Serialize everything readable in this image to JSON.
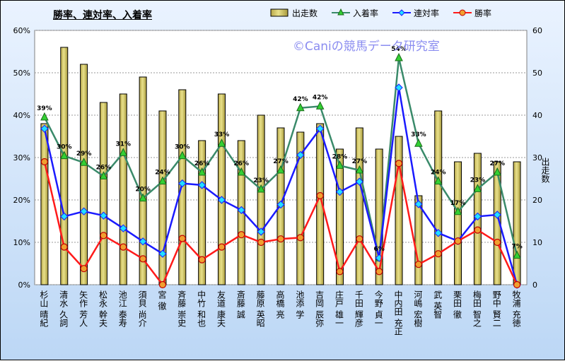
{
  "chart_data": {
    "type": "bar+line",
    "title": "勝率、連対率、入着率",
    "watermark": "©Caniの競馬データ研究室",
    "categories": [
      "杉山 晴紀",
      "清水 久詞",
      "矢作 芳人",
      "松永 幹夫",
      "池江 泰寿",
      "須貝 尚介",
      "宮 徹",
      "斉藤 崇史",
      "中竹 和也",
      "友道 康夫",
      "斎藤 誠",
      "藤原 英昭",
      "高橋 亮",
      "池添 学",
      "吉岡 辰弥",
      "庄戸 雄一",
      "千田 輝彦",
      "今野 貞一",
      "中内田 充正",
      "河嶋 宏樹",
      "武 英智",
      "栗田 徹",
      "梅田 智之",
      "野中 賢二",
      "牧浦 充徳"
    ],
    "y_left": {
      "label": "",
      "min": 0,
      "max": 60,
      "ticks": [
        "0%",
        "10%",
        "20%",
        "30%",
        "40%",
        "50%",
        "60%"
      ]
    },
    "y_right": {
      "label": "出走数",
      "min": 0,
      "max": 60,
      "ticks": [
        "0",
        "10",
        "20",
        "30",
        "40",
        "50",
        "60"
      ]
    },
    "series": [
      {
        "name": "出走数",
        "kind": "bar",
        "color": "#e8e08a",
        "values": [
          38,
          56,
          52,
          43,
          45,
          49,
          41,
          46,
          34,
          45,
          34,
          40,
          37,
          36,
          38,
          32,
          37,
          32,
          35,
          21,
          41,
          29,
          31,
          29,
          29
        ]
      },
      {
        "name": "入着率",
        "kind": "line",
        "color": "#3a8a6a",
        "marker": "triangle",
        "values": [
          39.5,
          30.4,
          28.8,
          25.6,
          31.1,
          20.4,
          24.4,
          30.4,
          26.5,
          33.3,
          26.5,
          22.5,
          27.0,
          41.7,
          42.1,
          28.1,
          27.0,
          6.3,
          53.5,
          33.3,
          24.4,
          17.2,
          22.6,
          26.5,
          6.9
        ],
        "labels": [
          "39%",
          "30%",
          "29%",
          "26%",
          "31%",
          "20%",
          "24%",
          "30%",
          "26%",
          "33%",
          "26%",
          "23%",
          "27%",
          "42%",
          "42%",
          "28%",
          "27%",
          "6%",
          "54%",
          "33%",
          "24%",
          "17%",
          "23%",
          "27%",
          "7%"
        ]
      },
      {
        "name": "連対率",
        "kind": "line",
        "color": "#1a1aff",
        "marker": "diamond",
        "values": [
          36.8,
          16.1,
          17.3,
          16.3,
          13.3,
          10.2,
          7.3,
          23.9,
          23.5,
          20.0,
          17.6,
          12.5,
          18.9,
          30.6,
          36.8,
          21.9,
          24.3,
          6.3,
          46.5,
          19.0,
          12.2,
          10.3,
          16.1,
          16.5,
          0.0
        ]
      },
      {
        "name": "勝率",
        "kind": "line",
        "color": "#ff1a1a",
        "marker": "circle",
        "values": [
          29.0,
          8.9,
          3.8,
          11.6,
          8.9,
          6.1,
          0.0,
          10.9,
          5.9,
          8.9,
          11.8,
          10.0,
          10.8,
          11.1,
          21.0,
          3.1,
          10.8,
          3.1,
          28.6,
          4.8,
          7.3,
          10.3,
          12.9,
          10.0,
          0.0
        ]
      }
    ]
  }
}
